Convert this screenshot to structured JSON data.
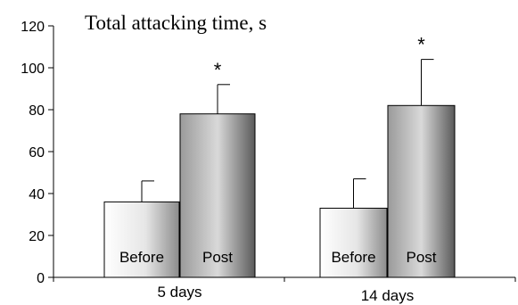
{
  "chart_data": {
    "type": "bar",
    "title": "Total attacking time, s",
    "xlabel": "",
    "ylabel": "",
    "ylim": [
      0,
      120
    ],
    "yticks": [
      0,
      20,
      40,
      60,
      80,
      100,
      120
    ],
    "categories": [
      "5 days",
      "14 days"
    ],
    "series": [
      {
        "name": "Before",
        "values": [
          36,
          33
        ],
        "errors": [
          10,
          14
        ],
        "significance": [
          "",
          ""
        ],
        "color_light": "#ffffff",
        "color_dark": "#8c8c8c"
      },
      {
        "name": "Post",
        "values": [
          78,
          82
        ],
        "errors": [
          14,
          22
        ],
        "significance": [
          "*",
          "*"
        ],
        "color_light": "#d9d9d9",
        "color_dark": "#5a5a5a"
      }
    ],
    "grid": false,
    "legend": "none"
  }
}
